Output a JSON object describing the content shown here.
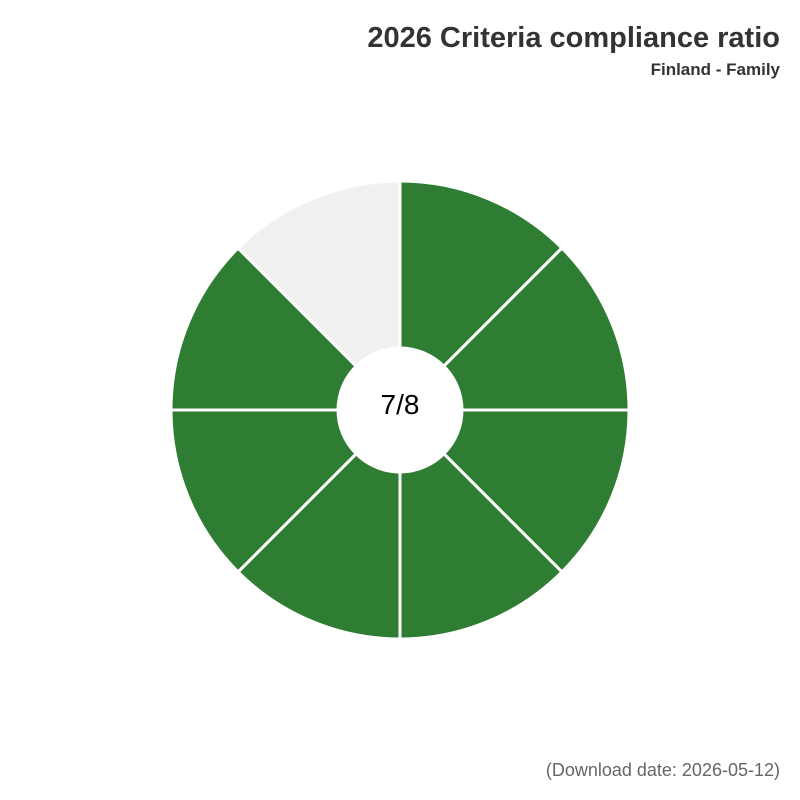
{
  "title": "2026 Criteria compliance ratio",
  "subtitle": "Finland - Family",
  "footer": "(Download date: 2026-05-12)",
  "chart_data": {
    "type": "pie",
    "variant": "segmented-donut",
    "total_segments": 8,
    "compliant_segments": 7,
    "center_label": "7/8",
    "segments": [
      {
        "index": 1,
        "status": "compliant"
      },
      {
        "index": 2,
        "status": "compliant"
      },
      {
        "index": 3,
        "status": "compliant"
      },
      {
        "index": 4,
        "status": "compliant"
      },
      {
        "index": 5,
        "status": "compliant"
      },
      {
        "index": 6,
        "status": "compliant"
      },
      {
        "index": 7,
        "status": "compliant"
      },
      {
        "index": 8,
        "status": "not-compliant"
      }
    ],
    "colors": {
      "compliant": "#2e7d32",
      "not-compliant": "#f0f0f0",
      "separator": "#ffffff"
    }
  }
}
